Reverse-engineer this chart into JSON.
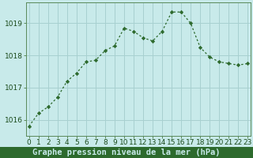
{
  "x": [
    0,
    1,
    2,
    3,
    4,
    5,
    6,
    7,
    8,
    9,
    10,
    11,
    12,
    13,
    14,
    15,
    16,
    17,
    18,
    19,
    20,
    21,
    22,
    23
  ],
  "y": [
    1015.8,
    1016.2,
    1016.4,
    1016.7,
    1017.2,
    1017.45,
    1017.8,
    1017.85,
    1018.15,
    1018.3,
    1018.85,
    1018.75,
    1018.55,
    1018.45,
    1018.75,
    1019.35,
    1019.35,
    1019.0,
    1018.25,
    1017.95,
    1017.8,
    1017.75,
    1017.7,
    1017.75
  ],
  "line_color": "#2d6a2d",
  "marker_color": "#2d6a2d",
  "bg_color": "#c8eaea",
  "grid_color": "#a8d0d0",
  "border_color": "#5a8a5a",
  "xlabel": "Graphe pression niveau de la mer (hPa)",
  "xlabel_bg": "#2d6a2d",
  "xlabel_color": "#c8eaea",
  "xlabel_fontsize": 7.5,
  "tick_color": "#1a4a1a",
  "tick_fontsize": 6.5,
  "ylim": [
    1015.5,
    1019.65
  ],
  "yticks": [
    1016,
    1017,
    1018,
    1019
  ],
  "xticks": [
    0,
    1,
    2,
    3,
    4,
    5,
    6,
    7,
    8,
    9,
    10,
    11,
    12,
    13,
    14,
    15,
    16,
    17,
    18,
    19,
    20,
    21,
    22,
    23
  ]
}
